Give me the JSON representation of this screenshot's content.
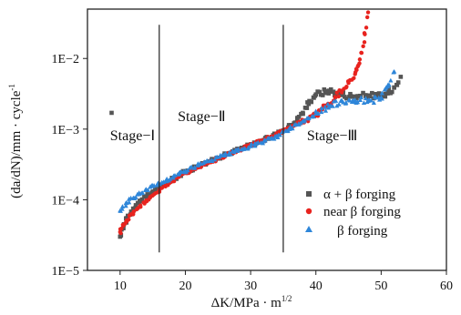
{
  "chart_data": {
    "type": "scatter",
    "xlabel": "ΔK/MPa · m",
    "xlabel_exponent": "1/2",
    "ylabel": "(da/dN)/mm · cycle",
    "ylabel_exponent": "-1",
    "xlim": [
      5,
      60
    ],
    "ylim": [
      1e-05,
      0.05
    ],
    "y_scale": "log",
    "x_ticks": [
      10,
      20,
      30,
      40,
      50,
      60
    ],
    "x_tick_labels": [
      "10",
      "20",
      "30",
      "40",
      "50",
      "60"
    ],
    "y_ticks": [
      1e-05,
      0.0001,
      0.001,
      0.01
    ],
    "y_tick_labels": [
      "1E−5",
      "1E−4",
      "1E−3",
      "1E−2"
    ],
    "vlines": [
      16,
      35
    ],
    "stage_labels": [
      {
        "text": "Stage−Ⅰ",
        "x": 11.9,
        "y": 0.0007
      },
      {
        "text": "Stage−Ⅱ",
        "x": 22.5,
        "y": 0.0013
      },
      {
        "text": "Stage−Ⅲ",
        "x": 42.5,
        "y": 0.0007
      }
    ],
    "outlier_points": [
      {
        "x": 8.7,
        "y": 0.0017
      }
    ],
    "legend_position": "lower-right",
    "series": [
      {
        "name": "α + β forging",
        "marker": "square",
        "color": "#555555",
        "points": [
          [
            10.0,
            3e-05
          ],
          [
            10.5,
            4e-05
          ],
          [
            11.0,
            5.5e-05
          ],
          [
            12.0,
            7.5e-05
          ],
          [
            13.0,
            9.5e-05
          ],
          [
            14.0,
            0.00011
          ],
          [
            15.0,
            0.00013
          ],
          [
            16.0,
            0.00015
          ],
          [
            17.0,
            0.00017
          ],
          [
            18.0,
            0.000195
          ],
          [
            19.0,
            0.00022
          ],
          [
            20.0,
            0.00025
          ],
          [
            22.0,
            0.0003
          ],
          [
            24.0,
            0.00036
          ],
          [
            26.0,
            0.00043
          ],
          [
            28.0,
            0.00051
          ],
          [
            30.0,
            0.0006
          ],
          [
            32.0,
            0.0007
          ],
          [
            34.0,
            0.00086
          ],
          [
            36.0,
            0.0011
          ],
          [
            38.0,
            0.0017
          ],
          [
            39.0,
            0.0025
          ],
          [
            40.0,
            0.0031
          ],
          [
            42.0,
            0.0035
          ],
          [
            44.0,
            0.0031
          ],
          [
            46.0,
            0.0029
          ],
          [
            48.0,
            0.003
          ],
          [
            50.0,
            0.0029
          ],
          [
            51.0,
            0.0032
          ],
          [
            52.0,
            0.0039
          ],
          [
            53.0,
            0.0055
          ]
        ]
      },
      {
        "name": "near β forging",
        "marker": "circle",
        "color": "#e8231e",
        "points": [
          [
            10.0,
            3.5e-05
          ],
          [
            10.5,
            4.3e-05
          ],
          [
            11.0,
            5.1e-05
          ],
          [
            12.0,
            6.5e-05
          ],
          [
            13.0,
            8e-05
          ],
          [
            14.0,
            9.8e-05
          ],
          [
            15.0,
            0.000115
          ],
          [
            16.0,
            0.000135
          ],
          [
            17.0,
            0.00016
          ],
          [
            18.0,
            0.000185
          ],
          [
            19.0,
            0.00021
          ],
          [
            20.0,
            0.00024
          ],
          [
            22.0,
            0.00029
          ],
          [
            24.0,
            0.00035
          ],
          [
            26.0,
            0.00042
          ],
          [
            28.0,
            0.0005
          ],
          [
            30.0,
            0.00059
          ],
          [
            32.0,
            0.0007
          ],
          [
            34.0,
            0.00085
          ],
          [
            36.0,
            0.00105
          ],
          [
            38.0,
            0.0013
          ],
          [
            40.0,
            0.0016
          ],
          [
            41.0,
            0.0019
          ],
          [
            42.0,
            0.0022
          ],
          [
            43.0,
            0.0028
          ],
          [
            44.0,
            0.0035
          ],
          [
            45.0,
            0.0045
          ],
          [
            46.0,
            0.006
          ],
          [
            46.5,
            0.008
          ],
          [
            47.0,
            0.012
          ],
          [
            47.5,
            0.022
          ],
          [
            48.0,
            0.045
          ]
        ]
      },
      {
        "name": "β forging",
        "marker": "triangle",
        "color": "#2e86d9",
        "points": [
          [
            10.0,
            7e-05
          ],
          [
            11.0,
            9e-05
          ],
          [
            12.0,
            0.000105
          ],
          [
            13.0,
            0.00012
          ],
          [
            14.0,
            0.00014
          ],
          [
            15.0,
            0.000155
          ],
          [
            16.0,
            0.00017
          ],
          [
            17.0,
            0.000185
          ],
          [
            18.0,
            0.000205
          ],
          [
            19.0,
            0.00023
          ],
          [
            20.0,
            0.000255
          ],
          [
            22.0,
            0.00031
          ],
          [
            24.0,
            0.00036
          ],
          [
            26.0,
            0.00042
          ],
          [
            28.0,
            0.00049
          ],
          [
            30.0,
            0.00057
          ],
          [
            32.0,
            0.00067
          ],
          [
            34.0,
            0.0008
          ],
          [
            36.0,
            0.001
          ],
          [
            38.0,
            0.0013
          ],
          [
            40.0,
            0.00165
          ],
          [
            42.0,
            0.0021
          ],
          [
            44.0,
            0.0025
          ],
          [
            46.0,
            0.0026
          ],
          [
            48.0,
            0.0025
          ],
          [
            50.0,
            0.0028
          ],
          [
            51.0,
            0.004
          ],
          [
            52.0,
            0.0065
          ]
        ]
      }
    ]
  }
}
